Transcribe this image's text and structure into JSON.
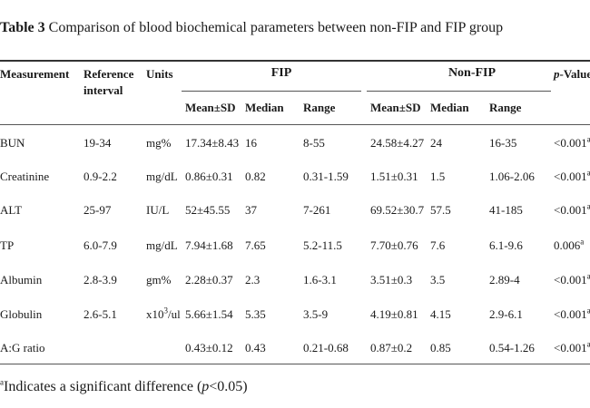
{
  "caption": {
    "label": "Table 3",
    "text": "Comparison of blood biochemical parameters between non-FIP and FIP group"
  },
  "headers": {
    "measurement": "Measurement",
    "reference_line1": "Reference",
    "reference_line2": "interval",
    "units": "Units",
    "fip": "FIP",
    "non_fip": "Non-FIP",
    "p_value_italic": "p",
    "p_value_rest": "-Value",
    "mean_sd": "Mean±SD",
    "median": "Median",
    "range": "Range"
  },
  "rows": [
    {
      "measurement": "BUN",
      "reference": "19-34",
      "units": "mg%",
      "fip_mean": "17.34±8.43",
      "fip_median": "16",
      "fip_range": "8-55",
      "non_mean": "24.58±4.27",
      "non_median": "24",
      "non_range": "16-35",
      "p": "<0.001",
      "p_mark": "a"
    },
    {
      "measurement": "Creatinine",
      "reference": "0.9-2.2",
      "units": "mg/dL",
      "fip_mean": "0.86±0.31",
      "fip_median": "0.82",
      "fip_range": "0.31-1.59",
      "non_mean": "1.51±0.31",
      "non_median": "1.5",
      "non_range": "1.06-2.06",
      "p": "<0.001",
      "p_mark": "a"
    },
    {
      "measurement": "ALT",
      "reference": "25-97",
      "units": "IU/L",
      "fip_mean": "52±45.55",
      "fip_median": "37",
      "fip_range": "7-261",
      "non_mean": "69.52±30.7",
      "non_median": "57.5",
      "non_range": "41-185",
      "p": "<0.001",
      "p_mark": "a"
    },
    {
      "measurement": "TP",
      "reference": "6.0-7.9",
      "units": "mg/dL",
      "fip_mean": "7.94±1.68",
      "fip_median": "7.65",
      "fip_range": "5.2-11.5",
      "non_mean": "7.70±0.76",
      "non_median": "7.6",
      "non_range": "6.1-9.6",
      "p": "0.006",
      "p_mark": "a"
    },
    {
      "measurement": "Albumin",
      "reference": "2.8-3.9",
      "units": "gm%",
      "fip_mean": "2.28±0.37",
      "fip_median": "2.3",
      "fip_range": "1.6-3.1",
      "non_mean": "3.51±0.3",
      "non_median": "3.5",
      "non_range": "2.89-4",
      "p": "<0.001",
      "p_mark": "a"
    },
    {
      "measurement": "Globulin",
      "reference": "2.6-5.1",
      "units_pre": "x10",
      "units_sup": "3",
      "units_post": "/ul",
      "fip_mean": "5.66±1.54",
      "fip_median": "5.35",
      "fip_range": "3.5-9",
      "non_mean": "4.19±0.81",
      "non_median": "4.15",
      "non_range": "2.9-6.1",
      "p": "<0.001",
      "p_mark": "a"
    },
    {
      "measurement": "A:G ratio",
      "reference": "",
      "units": "",
      "fip_mean": "0.43±0.12",
      "fip_median": "0.43",
      "fip_range": "0.21-0.68",
      "non_mean": "0.87±0.2",
      "non_median": "0.85",
      "non_range": "0.54-1.26",
      "p": "<0.001",
      "p_mark": "a"
    }
  ],
  "note": {
    "mark": "a",
    "text_before": "Indicates a significant difference (",
    "italic": "p",
    "text_after": "<0.05)"
  }
}
